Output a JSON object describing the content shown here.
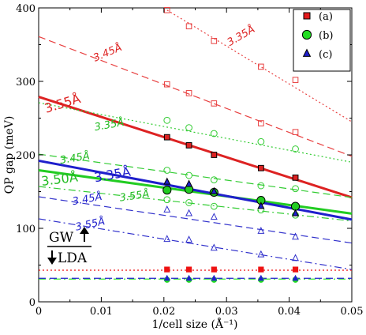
{
  "chart_data": {
    "type": "scatter",
    "title": "",
    "xlabel": "1/cell size (Å⁻¹)",
    "ylabel": "QP gap (meV)",
    "xlim": [
      0,
      0.05
    ],
    "ylim": [
      0,
      400
    ],
    "xticks": [
      0,
      0.01,
      0.02,
      0.03,
      0.04,
      0.05
    ],
    "xtick_labels": [
      "0",
      "0.01",
      "0.02",
      "0.03",
      "0.04",
      "0.05"
    ],
    "yticks": [
      0,
      100,
      200,
      300,
      400
    ],
    "ytick_labels": [
      "0",
      "100",
      "200",
      "300",
      "400"
    ],
    "grid": false,
    "legend_position": "top-right",
    "legend": [
      {
        "label": "(a)",
        "marker": "square",
        "color": "#e41a1c"
      },
      {
        "label": "(b)",
        "marker": "circle",
        "color": "#22dd22"
      },
      {
        "label": "(c)",
        "marker": "triangle",
        "color": "#1f1fcc"
      }
    ],
    "x_points": [
      0.0205,
      0.024,
      0.028,
      0.0355,
      0.041
    ],
    "series": [
      {
        "group": "a",
        "style": "solid-filled",
        "color": "#dd2222",
        "points": [
          [
            0.0205,
            224
          ],
          [
            0.024,
            213
          ],
          [
            0.028,
            200
          ],
          [
            0.0355,
            182
          ],
          [
            0.041,
            169
          ]
        ],
        "fit": [
          [
            0,
            279
          ],
          [
            0.05,
            142
          ]
        ],
        "fit_style": "solid",
        "fit_width": 3
      },
      {
        "group": "a",
        "style": "open-dashed",
        "color": "#e84040",
        "points": [
          [
            0.0205,
            296
          ],
          [
            0.024,
            284
          ],
          [
            0.028,
            270
          ],
          [
            0.0355,
            243
          ],
          [
            0.041,
            231
          ]
        ],
        "fit": [
          [
            0,
            361
          ],
          [
            0.05,
            198
          ]
        ],
        "fit_style": "dashed"
      },
      {
        "group": "a",
        "style": "open-dotted",
        "color": "#e84040",
        "points": [
          [
            0.0205,
            397
          ],
          [
            0.024,
            375
          ],
          [
            0.028,
            355
          ],
          [
            0.0355,
            320
          ],
          [
            0.041,
            302
          ]
        ],
        "fit": [
          [
            0.0205,
            397
          ],
          [
            0.05,
            245
          ]
        ],
        "fit_style": "dotted"
      },
      {
        "group": "a",
        "style": "lda-filled",
        "color": "#ee1111",
        "points": [
          [
            0.0205,
            44
          ],
          [
            0.024,
            44
          ],
          [
            0.028,
            44
          ],
          [
            0.0355,
            44
          ],
          [
            0.041,
            44
          ]
        ],
        "fit": [
          [
            0,
            43
          ],
          [
            0.05,
            43
          ]
        ],
        "fit_style": "dotted"
      },
      {
        "group": "b",
        "style": "solid-filled",
        "color": "#22cc22",
        "points": [
          [
            0.0205,
            152
          ],
          [
            0.024,
            153
          ],
          [
            0.028,
            149
          ],
          [
            0.0355,
            138
          ],
          [
            0.041,
            130
          ]
        ],
        "fit": [
          [
            0,
            179
          ],
          [
            0.05,
            120
          ]
        ],
        "fit_style": "solid",
        "fit_width": 3
      },
      {
        "group": "b",
        "style": "open-dotted",
        "color": "#33cc33",
        "points": [
          [
            0.0205,
            247
          ],
          [
            0.024,
            237
          ],
          [
            0.028,
            229
          ],
          [
            0.0355,
            218
          ],
          [
            0.041,
            208
          ]
        ],
        "fit": [
          [
            0,
            271
          ],
          [
            0.05,
            190
          ]
        ],
        "fit_style": "dotted"
      },
      {
        "group": "b",
        "style": "open-dashed",
        "color": "#33cc33",
        "points": [
          [
            0.0205,
            179
          ],
          [
            0.024,
            172
          ],
          [
            0.028,
            166
          ],
          [
            0.0355,
            158
          ],
          [
            0.041,
            154
          ]
        ],
        "fit": [
          [
            0,
            201
          ],
          [
            0.05,
            142
          ]
        ],
        "fit_style": "dashed"
      },
      {
        "group": "b",
        "style": "open-dashdot",
        "color": "#33cc33",
        "points": [
          [
            0.0205,
            139
          ],
          [
            0.024,
            135
          ],
          [
            0.028,
            130
          ],
          [
            0.0355,
            125
          ],
          [
            0.041,
            118
          ]
        ],
        "fit": [
          [
            0,
            157
          ],
          [
            0.05,
            110
          ]
        ],
        "fit_style": "dashdot"
      },
      {
        "group": "b",
        "style": "lda-filled",
        "color": "#22dd22",
        "points": [
          [
            0.0205,
            30
          ],
          [
            0.024,
            30
          ],
          [
            0.028,
            30
          ],
          [
            0.0355,
            30
          ],
          [
            0.041,
            30
          ]
        ],
        "fit": [
          [
            0,
            31
          ],
          [
            0.05,
            31
          ]
        ],
        "fit_style": "dashdot"
      },
      {
        "group": "c",
        "style": "solid-filled",
        "color": "#1f1fcc",
        "points": [
          [
            0.0205,
            163
          ],
          [
            0.024,
            160
          ],
          [
            0.028,
            150
          ],
          [
            0.0355,
            130
          ],
          [
            0.041,
            120
          ]
        ],
        "fit": [
          [
            0,
            192
          ],
          [
            0.05,
            112
          ]
        ],
        "fit_style": "solid",
        "fit_width": 3
      },
      {
        "group": "c",
        "style": "open-dashed",
        "color": "#3333cc",
        "points": [
          [
            0.0205,
            125
          ],
          [
            0.024,
            120
          ],
          [
            0.028,
            115
          ],
          [
            0.0355,
            96
          ],
          [
            0.041,
            88
          ]
        ],
        "fit": [
          [
            0,
            143
          ],
          [
            0.05,
            80
          ]
        ],
        "fit_style": "dashed"
      },
      {
        "group": "c",
        "style": "open-dashdot",
        "color": "#3333cc",
        "points": [
          [
            0.0205,
            85
          ],
          [
            0.024,
            84
          ],
          [
            0.028,
            73
          ],
          [
            0.0355,
            64
          ],
          [
            0.041,
            59
          ]
        ],
        "fit": [
          [
            0,
            113
          ],
          [
            0.05,
            44
          ]
        ],
        "fit_style": "dashdot"
      },
      {
        "group": "c",
        "style": "lda-filled",
        "color": "#1f1fcc",
        "points": [
          [
            0.0205,
            32
          ],
          [
            0.024,
            32
          ],
          [
            0.028,
            32
          ],
          [
            0.0355,
            32
          ],
          [
            0.041,
            32
          ]
        ],
        "fit": [
          [
            0,
            32
          ],
          [
            0.05,
            32
          ]
        ],
        "fit_style": "dashed"
      }
    ],
    "annotations": [
      {
        "text": "3.35Å",
        "x": 0.0305,
        "y": 348,
        "angle": -30,
        "color": "#dd2222",
        "size": "small"
      },
      {
        "text": "3.45Å",
        "x": 0.009,
        "y": 327,
        "angle": -23,
        "color": "#dd2222",
        "size": "small"
      },
      {
        "text": "3.55Å",
        "x": 0.0012,
        "y": 257,
        "angle": -17,
        "color": "#dd2222",
        "size": "big"
      },
      {
        "text": "3.35Å",
        "x": 0.009,
        "y": 233,
        "angle": -10,
        "color": "#22bb22",
        "size": "small"
      },
      {
        "text": "3.45Å",
        "x": 0.0035,
        "y": 188,
        "angle": -9,
        "color": "#22bb22",
        "size": "small"
      },
      {
        "text": "3.50Å",
        "x": 0.0005,
        "y": 158,
        "angle": -7,
        "color": "#22bb22",
        "size": "big"
      },
      {
        "text": "3.35Å",
        "x": 0.009,
        "y": 163,
        "angle": -10,
        "color": "#2222cc",
        "size": "big"
      },
      {
        "text": "3.55Å",
        "x": 0.013,
        "y": 137,
        "angle": -8,
        "color": "#22bb22",
        "size": "small"
      },
      {
        "text": "3.45Å",
        "x": 0.0055,
        "y": 132,
        "angle": -10,
        "color": "#2222cc",
        "size": "small"
      },
      {
        "text": "3.55Å",
        "x": 0.006,
        "y": 97,
        "angle": -12,
        "color": "#2222cc",
        "size": "small"
      }
    ],
    "gw_label": "GW",
    "lda_label": "LDA"
  }
}
